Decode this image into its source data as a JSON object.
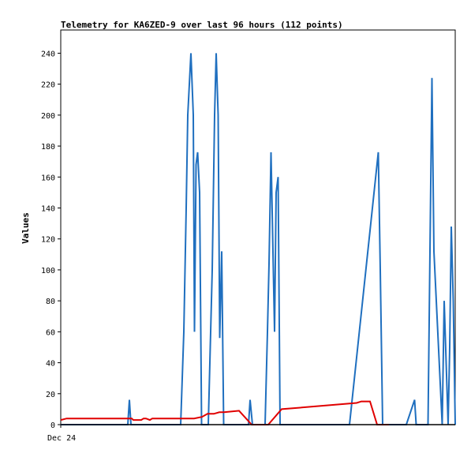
{
  "chart_data": {
    "type": "line",
    "title": "Telemetry for KA6ZED-9 over last 96 hours (112 points)",
    "xlabel": "",
    "ylabel": "Values",
    "x_tick_labels": [
      "Dec 24"
    ],
    "ylim": [
      0,
      255
    ],
    "yticks": [
      0,
      20,
      40,
      60,
      80,
      100,
      120,
      140,
      160,
      180,
      200,
      220,
      240
    ],
    "grid": false,
    "legend": "none",
    "series": [
      {
        "color": "#1f6fbf",
        "x": [
          0,
          17.0,
          17.4,
          17.8,
          18.2,
          30.4,
          31.2,
          31.8,
          32.2,
          33.0,
          33.6,
          33.9,
          34.3,
          34.7,
          35.2,
          35.7,
          37.4,
          38.4,
          39.0,
          39.4,
          39.9,
          40.3,
          40.8,
          41.3,
          47.6,
          48.0,
          48.6,
          51.8,
          52.4,
          52.8,
          53.3,
          54.2,
          54.6,
          55.1,
          55.6,
          73.2,
          80.5,
          81.0,
          81.6,
          87.6,
          89.7,
          90.1,
          93.1,
          93.6,
          94.1,
          94.6,
          96.7,
          97.2,
          97.7,
          98.2,
          98.6,
          99.0,
          99.5,
          100.0
        ],
        "y": [
          0,
          0,
          16,
          0,
          0,
          0,
          60,
          140,
          200,
          240,
          200,
          60,
          168,
          176,
          150,
          0,
          0,
          100,
          200,
          240,
          200,
          56,
          112,
          0,
          0,
          16,
          0,
          0,
          60,
          104,
          176,
          60,
          150,
          160,
          0,
          0,
          176,
          100,
          0,
          0,
          16,
          0,
          0,
          112,
          224,
          112,
          0,
          80,
          40,
          0,
          50,
          128,
          80,
          0
        ]
      },
      {
        "color": "#e00000",
        "x": [
          0,
          1.5,
          18.0,
          18.4,
          20.4,
          21.0,
          21.6,
          22.6,
          23.2,
          32.0,
          33.8,
          35.8,
          37.2,
          38.8,
          40.2,
          41.4,
          45.2,
          48.4,
          52.6,
          56.0,
          75.0,
          76.2,
          77.3,
          77.8,
          78.4,
          80.2,
          80.6,
          80.9,
          81.4,
          82.0,
          82.6,
          83.2
        ],
        "y": [
          3,
          4,
          4,
          3,
          3,
          4,
          4,
          3,
          4,
          4,
          4,
          5,
          7,
          7,
          8,
          8,
          9,
          0,
          0,
          10,
          14,
          15,
          15,
          15,
          15,
          0,
          0,
          0,
          0,
          0,
          0,
          0
        ]
      },
      {
        "color": "#000000",
        "x": [
          0,
          100
        ],
        "y": [
          0,
          0
        ]
      }
    ]
  }
}
